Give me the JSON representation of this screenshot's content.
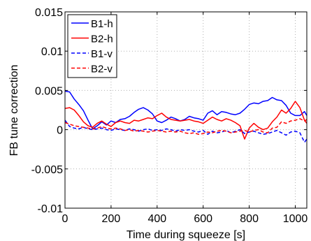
{
  "chart_data": {
    "type": "line",
    "xlabel": "Time during squeeze [s]",
    "ylabel": "FB tune correction",
    "xlim": [
      0,
      1050
    ],
    "ylim": [
      -0.01,
      0.015
    ],
    "xticks": [
      0,
      200,
      400,
      600,
      800,
      1000
    ],
    "xtick_labels": [
      "0",
      "200",
      "400",
      "600",
      "800",
      "1000"
    ],
    "yticks": [
      -0.01,
      -0.005,
      0,
      0.005,
      0.01,
      0.015
    ],
    "ytick_labels": [
      "-0.01",
      "-0.005",
      "0",
      "0.005",
      "0.01",
      "0.015"
    ],
    "grid": true,
    "legend_position": "top-left",
    "series": [
      {
        "name": "B1-h",
        "color": "#0000ff",
        "dash": "solid",
        "x": [
          0,
          20,
          40,
          60,
          80,
          100,
          120,
          140,
          160,
          180,
          200,
          220,
          240,
          260,
          280,
          300,
          320,
          340,
          360,
          380,
          400,
          420,
          440,
          460,
          480,
          500,
          520,
          540,
          560,
          580,
          600,
          620,
          640,
          660,
          680,
          700,
          720,
          740,
          760,
          780,
          800,
          820,
          840,
          860,
          880,
          900,
          920,
          940,
          960,
          980,
          1000,
          1020,
          1040,
          1050
        ],
        "y": [
          0.0049,
          0.0048,
          0.0039,
          0.0032,
          0.0024,
          0.0012,
          0.0001,
          0.0005,
          0.001,
          0.0006,
          0.0011,
          0.0009,
          0.0013,
          0.0014,
          0.0017,
          0.0022,
          0.0026,
          0.0028,
          0.0025,
          0.002,
          0.0011,
          0.0009,
          0.0012,
          0.0016,
          0.0014,
          0.0011,
          0.0013,
          0.0017,
          0.0015,
          0.0014,
          0.0012,
          0.0021,
          0.0024,
          0.0019,
          0.0023,
          0.0022,
          0.002,
          0.0019,
          0.0021,
          0.0026,
          0.0032,
          0.0034,
          0.0033,
          0.0036,
          0.0037,
          0.0041,
          0.0038,
          0.0037,
          0.0031,
          0.0021,
          0.0018,
          0.0018,
          0.0023,
          0.0018
        ]
      },
      {
        "name": "B2-h",
        "color": "#ff0000",
        "dash": "solid",
        "x": [
          0,
          20,
          40,
          60,
          80,
          100,
          120,
          140,
          160,
          180,
          200,
          220,
          240,
          260,
          280,
          300,
          320,
          340,
          360,
          380,
          400,
          420,
          440,
          460,
          480,
          500,
          520,
          540,
          560,
          580,
          600,
          620,
          640,
          660,
          680,
          700,
          720,
          740,
          760,
          780,
          800,
          820,
          840,
          860,
          880,
          900,
          920,
          940,
          960,
          980,
          1000,
          1020,
          1040,
          1050
        ],
        "y": [
          0.0027,
          0.0028,
          0.0025,
          0.0018,
          0.001,
          0.0005,
          0.0003,
          0.0008,
          0.0011,
          0.0007,
          0.0004,
          0.0009,
          0.0011,
          0.0009,
          0.0008,
          0.0012,
          0.0011,
          0.0013,
          0.0015,
          0.0014,
          0.0018,
          0.0021,
          0.0016,
          0.0013,
          0.0012,
          0.0011,
          0.0012,
          0.0013,
          0.0011,
          0.001,
          0.0008,
          0.0012,
          0.0016,
          0.0013,
          0.0011,
          0.0014,
          0.0012,
          0.0009,
          0.0005,
          -0.0012,
          0.0002,
          0.0008,
          0.0003,
          0.0,
          0.0002,
          0.001,
          0.0016,
          0.0025,
          0.0021,
          0.0027,
          0.0036,
          0.0028,
          0.0012,
          0.0008
        ]
      },
      {
        "name": "B1-v",
        "color": "#0000ff",
        "dash": "dashed",
        "x": [
          0,
          20,
          40,
          60,
          80,
          100,
          120,
          140,
          160,
          180,
          200,
          220,
          240,
          260,
          280,
          300,
          320,
          340,
          360,
          380,
          400,
          420,
          440,
          460,
          480,
          500,
          520,
          540,
          560,
          580,
          600,
          620,
          640,
          660,
          680,
          700,
          720,
          740,
          760,
          780,
          800,
          820,
          840,
          860,
          880,
          900,
          920,
          940,
          960,
          980,
          1000,
          1020,
          1040,
          1050
        ],
        "y": [
          0.0012,
          0.0004,
          0.0002,
          0.0001,
          0.0003,
          0.0001,
          0.0,
          0.0001,
          0.0002,
          0.0,
          -0.0001,
          0.0001,
          0.0,
          -0.0001,
          0.0001,
          0.0,
          -0.0002,
          0.0,
          0.0001,
          -0.0001,
          0.0,
          -0.0001,
          0.0001,
          0.0,
          -0.0002,
          0.0,
          -0.0001,
          0.0,
          -0.0002,
          -0.0003,
          -0.0001,
          -0.0006,
          -0.0002,
          -0.0004,
          -0.0003,
          -0.0001,
          -0.0004,
          -0.0002,
          0.0,
          -0.0005,
          -0.0003,
          -0.0002,
          -0.0004,
          -0.0006,
          -0.0005,
          -0.0003,
          -0.0001,
          -0.0004,
          -0.0007,
          -0.0003,
          -0.0002,
          -0.0004,
          -0.0016,
          -0.0012
        ]
      },
      {
        "name": "B2-v",
        "color": "#ff0000",
        "dash": "dashed",
        "x": [
          0,
          20,
          40,
          60,
          80,
          100,
          120,
          140,
          160,
          180,
          200,
          220,
          240,
          260,
          280,
          300,
          320,
          340,
          360,
          380,
          400,
          420,
          440,
          460,
          480,
          500,
          520,
          540,
          560,
          580,
          600,
          620,
          640,
          660,
          680,
          700,
          720,
          740,
          760,
          780,
          800,
          820,
          840,
          860,
          880,
          900,
          920,
          940,
          960,
          980,
          1000,
          1020,
          1040,
          1050
        ],
        "y": [
          0.0009,
          0.0007,
          0.0005,
          0.0004,
          0.0003,
          0.0002,
          0.0001,
          0.0002,
          0.0004,
          0.0002,
          0.0001,
          0.0002,
          0.0001,
          -0.0001,
          0.0,
          -0.0002,
          -0.0001,
          -0.0002,
          -0.0003,
          -0.0002,
          -0.0001,
          -0.0002,
          -0.0003,
          -0.0002,
          -0.0003,
          -0.0002,
          -0.0004,
          -0.0005,
          -0.0004,
          -0.0006,
          -0.0005,
          -0.0003,
          -0.0004,
          -0.0002,
          -0.0001,
          -0.0002,
          -0.0004,
          -0.0003,
          -0.0002,
          -0.0001,
          -0.0003,
          -0.0001,
          0.0,
          -0.0003,
          -0.0004,
          0.0002,
          0.0003,
          0.001,
          0.0008,
          0.0011,
          0.0012,
          0.0014,
          0.0011,
          0.0013
        ]
      }
    ]
  }
}
